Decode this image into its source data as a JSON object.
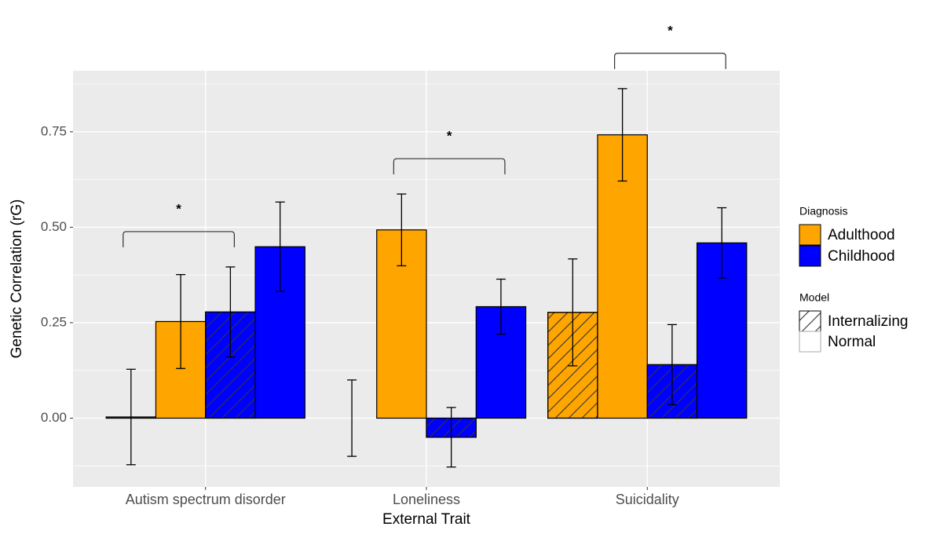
{
  "chart_data": {
    "type": "bar",
    "categories": [
      "Autism spectrum disorder",
      "Loneliness",
      "Suicidality"
    ],
    "x_label": "External Trait",
    "y_label": "Genetic Correlation (rG)",
    "ylim": [
      -0.18,
      0.91
    ],
    "yticks": [
      {
        "value": 0,
        "label": "0.00"
      },
      {
        "value": 0.25,
        "label": "0.25"
      },
      {
        "value": 0.5,
        "label": "0.50"
      },
      {
        "value": 0.75,
        "label": "0.75"
      }
    ],
    "grid": true,
    "series": [
      {
        "color": "#FFA500",
        "hatch": true,
        "values": [
          0.003,
          0.0,
          0.277
        ],
        "errors": [
          0.125,
          0.1,
          0.14
        ]
      },
      {
        "color": "#FFA500",
        "hatch": false,
        "values": [
          0.253,
          0.493,
          0.742
        ],
        "errors": [
          0.123,
          0.094,
          0.121
        ]
      },
      {
        "color": "#0000FF",
        "hatch": true,
        "values": [
          0.278,
          -0.05,
          0.14
        ],
        "errors": [
          0.118,
          0.078,
          0.105
        ]
      },
      {
        "color": "#0000FF",
        "hatch": false,
        "values": [
          0.449,
          0.292,
          0.459
        ],
        "errors": [
          0.117,
          0.072,
          0.092
        ]
      }
    ],
    "legend": {
      "diagnosis": {
        "title": "Diagnosis",
        "items": [
          {
            "label": "Adulthood",
            "color": "#FFA500"
          },
          {
            "label": "Childhood",
            "color": "#0000FF"
          }
        ]
      },
      "model": {
        "title": "Model",
        "items": [
          {
            "label": "Internalizing",
            "hatch": true
          },
          {
            "label": "Normal",
            "hatch": false
          }
        ]
      }
    },
    "annotations": [
      {
        "text": "*",
        "category": 0,
        "from": 0,
        "to": 2
      },
      {
        "text": "*",
        "category": 1,
        "from": 1,
        "to": 3
      },
      {
        "text": "*",
        "category": 2,
        "from": 1,
        "to": 3
      }
    ]
  }
}
